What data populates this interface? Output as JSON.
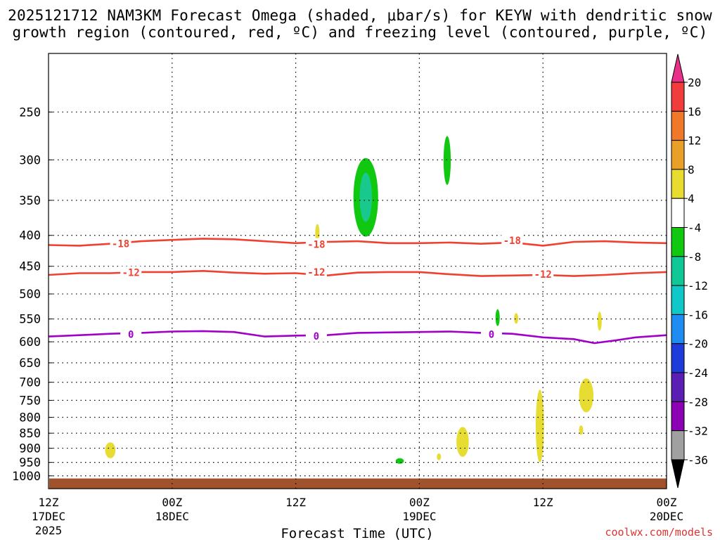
{
  "title": {
    "line1": "2025121712 NAM3KM Forecast Omega (shaded, μbar/s) for KEYW with dendritic snow",
    "line2": "growth region (contoured, red, ºC) and freezing level (contoured, purple, ºC)"
  },
  "credit": "coolwx.com/models",
  "colors": {
    "dgz_contour": "#f04030",
    "freezing_contour": "#a000c8",
    "ground": "#a0522d",
    "grid": "#000000"
  },
  "chart_data": {
    "type": "contour",
    "xlabel": "Forecast Time (UTC)",
    "ylabel": "",
    "y_scale": "log-pressure",
    "y_reversed": true,
    "ylim_hpa": [
      1050,
      200
    ],
    "xlim_hours": [
      0,
      60
    ],
    "grid": true,
    "y_ticks": [
      "250",
      "300",
      "350",
      "400",
      "450",
      "500",
      "550",
      "600",
      "650",
      "700",
      "750",
      "800",
      "850",
      "900",
      "950",
      "1000"
    ],
    "x_ticks": [
      {
        "hour": 0,
        "label": [
          "12Z",
          "17DEC",
          "2025"
        ]
      },
      {
        "hour": 12,
        "label": [
          "00Z",
          "18DEC"
        ]
      },
      {
        "hour": 24,
        "label": [
          "12Z"
        ]
      },
      {
        "hour": 36,
        "label": [
          "00Z",
          "19DEC"
        ]
      },
      {
        "hour": 48,
        "label": [
          "12Z"
        ]
      },
      {
        "hour": 60,
        "label": [
          "00Z",
          "20DEC"
        ]
      }
    ],
    "colorbar": {
      "labels": [
        "20",
        "16",
        "12",
        "8",
        "4",
        "-4",
        "-8",
        "-12",
        "-16",
        "-20",
        "-24",
        "-28",
        "-32",
        "-36"
      ],
      "colors": [
        "#e8308a",
        "#f03c3c",
        "#f07828",
        "#e8a028",
        "#e8dc30",
        "#ffffff",
        "#10c810",
        "#10c896",
        "#10c8c8",
        "#1e8cf0",
        "#1e3cdc",
        "#5a1eb4",
        "#8c00b4",
        "#a0a0a0",
        "#000000"
      ]
    },
    "contours": [
      {
        "value": "-18",
        "color": "#f04030",
        "points": [
          [
            0,
            415
          ],
          [
            3,
            416
          ],
          [
            6,
            413
          ],
          [
            9,
            409
          ],
          [
            12,
            407
          ],
          [
            15,
            405
          ],
          [
            18,
            406
          ],
          [
            21,
            409
          ],
          [
            24,
            412
          ],
          [
            27,
            410
          ],
          [
            30,
            409
          ],
          [
            33,
            412
          ],
          [
            36,
            412
          ],
          [
            39,
            411
          ],
          [
            42,
            413
          ],
          [
            45,
            411
          ],
          [
            48,
            416
          ],
          [
            51,
            410
          ],
          [
            54,
            409
          ],
          [
            57,
            411
          ],
          [
            60,
            412
          ]
        ],
        "labels": [
          [
            7,
            413
          ],
          [
            26,
            414
          ],
          [
            45,
            408
          ]
        ]
      },
      {
        "value": "-12",
        "color": "#f04030",
        "points": [
          [
            0,
            465
          ],
          [
            3,
            462
          ],
          [
            6,
            462
          ],
          [
            9,
            460
          ],
          [
            12,
            460
          ],
          [
            15,
            458
          ],
          [
            18,
            461
          ],
          [
            21,
            463
          ],
          [
            24,
            462
          ],
          [
            27,
            466
          ],
          [
            30,
            461
          ],
          [
            33,
            460
          ],
          [
            36,
            460
          ],
          [
            39,
            464
          ],
          [
            42,
            467
          ],
          [
            45,
            466
          ],
          [
            48,
            465
          ],
          [
            51,
            467
          ],
          [
            54,
            465
          ],
          [
            57,
            462
          ],
          [
            60,
            460
          ]
        ],
        "labels": [
          [
            8,
            461
          ],
          [
            26,
            460
          ],
          [
            48,
            464
          ]
        ]
      },
      {
        "value": "0",
        "color": "#a000c8",
        "points": [
          [
            0,
            588
          ],
          [
            3,
            585
          ],
          [
            6,
            582
          ],
          [
            9,
            580
          ],
          [
            12,
            577
          ],
          [
            15,
            576
          ],
          [
            18,
            578
          ],
          [
            21,
            588
          ],
          [
            24,
            586
          ],
          [
            27,
            585
          ],
          [
            30,
            580
          ],
          [
            33,
            579
          ],
          [
            36,
            578
          ],
          [
            39,
            577
          ],
          [
            42,
            580
          ],
          [
            45,
            582
          ],
          [
            48,
            590
          ],
          [
            51,
            594
          ],
          [
            53,
            603
          ],
          [
            55,
            597
          ],
          [
            57,
            590
          ],
          [
            60,
            585
          ]
        ],
        "labels": [
          [
            8,
            583
          ],
          [
            26,
            587
          ],
          [
            43,
            583
          ]
        ]
      }
    ],
    "omega_shades": [
      {
        "value": "-4..-8",
        "color": "#10c810",
        "center": [
          30.8,
          340
        ],
        "hours_halfwidth": 1.2,
        "p_top": 298,
        "p_bottom": 402
      },
      {
        "value": "-8..-12",
        "color": "#18c88c",
        "center": [
          30.8,
          340
        ],
        "hours_halfwidth": 0.6,
        "p_top": 315,
        "p_bottom": 380
      },
      {
        "value": "-4..-8",
        "color": "#10c810",
        "center": [
          38.7,
          300
        ],
        "hours_halfwidth": 0.35,
        "p_top": 274,
        "p_bottom": 330
      },
      {
        "value": "-4..-8",
        "color": "#10c810",
        "center": [
          43.6,
          548
        ],
        "hours_halfwidth": 0.2,
        "p_top": 530,
        "p_bottom": 565
      },
      {
        "value": "-4..-8",
        "color": "#10c810",
        "center": [
          34.1,
          945
        ],
        "hours_halfwidth": 0.4,
        "p_top": 935,
        "p_bottom": 955
      },
      {
        "value": "4..8",
        "color": "#e6dc32",
        "center": [
          6,
          905
        ],
        "hours_halfwidth": 0.5,
        "p_top": 880,
        "p_bottom": 935
      },
      {
        "value": "4..8",
        "color": "#e6dc32",
        "center": [
          26.1,
          395
        ],
        "hours_halfwidth": 0.15,
        "p_top": 383,
        "p_bottom": 410
      },
      {
        "value": "4..8",
        "color": "#e6dc32",
        "center": [
          45.4,
          548
        ],
        "hours_halfwidth": 0.18,
        "p_top": 538,
        "p_bottom": 560
      },
      {
        "value": "4..8",
        "color": "#e6dc32",
        "center": [
          53.5,
          555
        ],
        "hours_halfwidth": 0.2,
        "p_top": 535,
        "p_bottom": 575
      },
      {
        "value": "4..8",
        "color": "#e6dc32",
        "center": [
          40.2,
          880
        ],
        "hours_halfwidth": 0.6,
        "p_top": 830,
        "p_bottom": 930
      },
      {
        "value": "4..8",
        "color": "#e6dc32",
        "center": [
          37.9,
          930
        ],
        "hours_halfwidth": 0.15,
        "p_top": 918,
        "p_bottom": 942
      },
      {
        "value": "4..8",
        "color": "#e6dc32",
        "center": [
          47.7,
          800
        ],
        "hours_halfwidth": 0.4,
        "p_top": 720,
        "p_bottom": 950
      },
      {
        "value": "4..8",
        "color": "#e6dc32",
        "center": [
          52.2,
          740
        ],
        "hours_halfwidth": 0.7,
        "p_top": 690,
        "p_bottom": 785
      },
      {
        "value": "4..8",
        "color": "#e6dc32",
        "center": [
          51.7,
          840
        ],
        "hours_halfwidth": 0.2,
        "p_top": 825,
        "p_bottom": 855
      }
    ],
    "ground": {
      "color": "#a0522d",
      "p_top": 1010
    }
  }
}
